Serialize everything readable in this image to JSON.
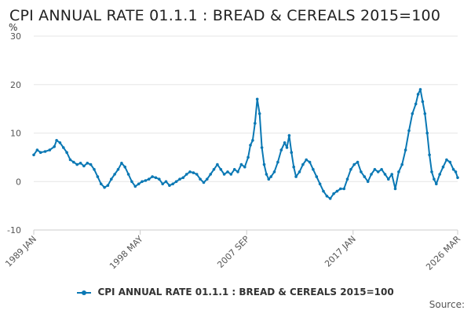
{
  "chart_data": {
    "type": "line",
    "title": "CPI ANNUAL RATE 01.1.1 : BREAD & CEREALS 2015=100",
    "ylabel": "%",
    "xlabel": "",
    "ylim": [
      -10,
      30
    ],
    "yticks": [
      -10,
      0,
      10,
      20,
      30
    ],
    "xlim": [
      1989.0,
      2026.17
    ],
    "xticks": [
      {
        "label": "1989 JAN",
        "value": 1989.0
      },
      {
        "label": "1998 MAY",
        "value": 1998.33
      },
      {
        "label": "2007 SEP",
        "value": 2007.67
      },
      {
        "label": "2017 JAN",
        "value": 2017.0
      },
      {
        "label": "2026 MAR",
        "value": 2026.17
      }
    ],
    "grid": true,
    "legend_position": "bottom-center",
    "series": [
      {
        "name": "CPI ANNUAL RATE 01.1.1 : BREAD & CEREALS 2015=100",
        "color": "#0a78b4",
        "x": [
          1989.0,
          1989.3,
          1989.6,
          1990.0,
          1990.4,
          1990.8,
          1991.0,
          1991.3,
          1991.6,
          1991.9,
          1992.2,
          1992.5,
          1992.8,
          1993.1,
          1993.4,
          1993.7,
          1994.0,
          1994.3,
          1994.6,
          1994.9,
          1995.2,
          1995.5,
          1995.8,
          1996.1,
          1996.4,
          1996.7,
          1997.0,
          1997.3,
          1997.6,
          1997.9,
          1998.2,
          1998.5,
          1998.8,
          1999.1,
          1999.4,
          1999.7,
          2000.0,
          2000.3,
          2000.6,
          2000.9,
          2001.2,
          2001.5,
          2001.8,
          2002.1,
          2002.4,
          2002.7,
          2003.0,
          2003.3,
          2003.6,
          2003.9,
          2004.2,
          2004.5,
          2004.8,
          2005.1,
          2005.4,
          2005.7,
          2006.0,
          2006.3,
          2006.6,
          2006.9,
          2007.2,
          2007.5,
          2007.8,
          2008.0,
          2008.2,
          2008.4,
          2008.6,
          2008.8,
          2009.0,
          2009.2,
          2009.4,
          2009.6,
          2009.8,
          2010.1,
          2010.4,
          2010.7,
          2011.0,
          2011.2,
          2011.4,
          2011.6,
          2011.8,
          2012.0,
          2012.3,
          2012.6,
          2012.9,
          2013.2,
          2013.5,
          2013.8,
          2014.1,
          2014.4,
          2014.7,
          2015.0,
          2015.3,
          2015.6,
          2015.9,
          2016.2,
          2016.5,
          2016.8,
          2017.1,
          2017.4,
          2017.7,
          2018.0,
          2018.3,
          2018.6,
          2018.9,
          2019.2,
          2019.5,
          2019.8,
          2020.1,
          2020.4,
          2020.7,
          2021.0,
          2021.3,
          2021.6,
          2021.9,
          2022.2,
          2022.5,
          2022.7,
          2022.9,
          2023.1,
          2023.3,
          2023.5,
          2023.7,
          2023.9,
          2024.1,
          2024.3,
          2024.6,
          2024.9,
          2025.2,
          2025.5,
          2025.8,
          2026.0,
          2026.17
        ],
        "values": [
          5.5,
          6.5,
          6.0,
          6.2,
          6.5,
          7.2,
          8.5,
          8.0,
          7.0,
          6.0,
          4.5,
          4.0,
          3.5,
          3.8,
          3.2,
          3.8,
          3.5,
          2.5,
          1.0,
          -0.5,
          -1.2,
          -0.8,
          0.5,
          1.5,
          2.5,
          3.8,
          3.0,
          1.5,
          0.0,
          -1.0,
          -0.5,
          0.0,
          0.2,
          0.5,
          1.0,
          0.8,
          0.5,
          -0.5,
          0.0,
          -0.8,
          -0.5,
          0.0,
          0.5,
          0.8,
          1.5,
          2.0,
          1.8,
          1.5,
          0.5,
          -0.2,
          0.5,
          1.5,
          2.5,
          3.5,
          2.5,
          1.5,
          2.0,
          1.5,
          2.5,
          2.0,
          3.5,
          3.0,
          5.0,
          7.5,
          8.5,
          12.0,
          17.0,
          14.0,
          7.0,
          3.5,
          1.5,
          0.5,
          1.0,
          2.0,
          4.0,
          6.5,
          8.0,
          7.0,
          9.5,
          6.0,
          3.0,
          1.0,
          2.0,
          3.5,
          4.5,
          4.0,
          2.5,
          1.0,
          -0.5,
          -2.0,
          -3.0,
          -3.5,
          -2.5,
          -2.0,
          -1.5,
          -1.5,
          0.5,
          2.5,
          3.5,
          4.0,
          2.0,
          1.0,
          0.0,
          1.5,
          2.5,
          2.0,
          2.5,
          1.5,
          0.5,
          1.5,
          -1.5,
          2.0,
          3.5,
          6.5,
          10.5,
          14.0,
          16.0,
          18.0,
          19.0,
          16.5,
          14.0,
          10.0,
          5.5,
          2.0,
          0.5,
          -0.5,
          1.5,
          3.0,
          4.5,
          4.0,
          2.5,
          2.0,
          0.8
        ]
      }
    ]
  },
  "legend": {
    "label": "CPI ANNUAL RATE 01.1.1 : BREAD & CEREALS 2015=100"
  },
  "footer": {
    "source_label": "Source:"
  }
}
